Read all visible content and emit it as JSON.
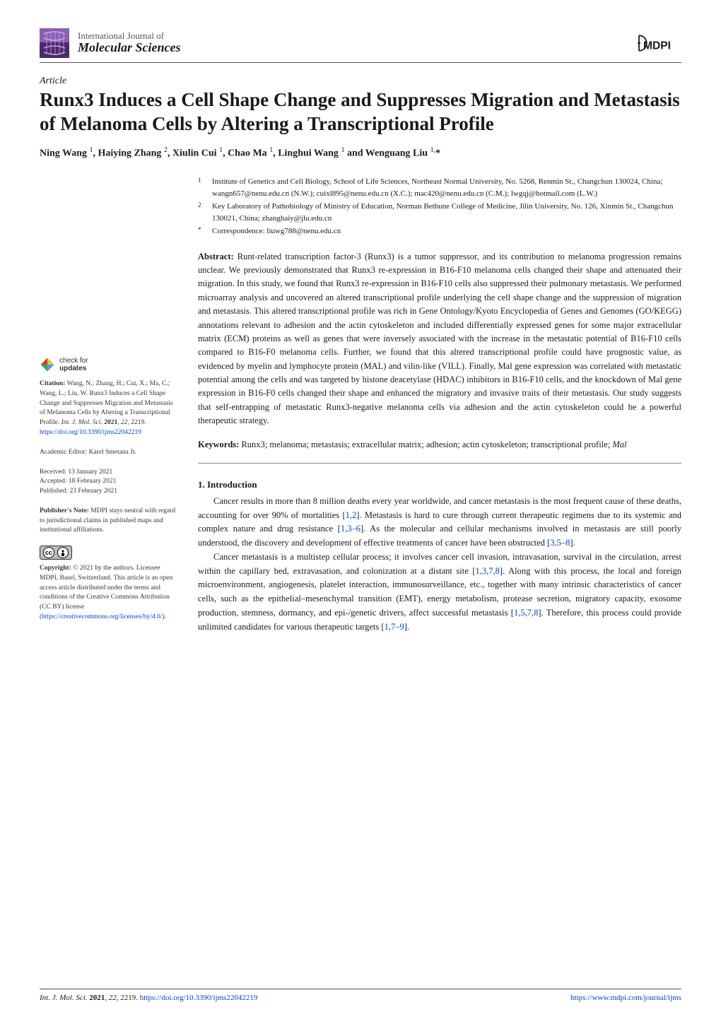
{
  "journal": {
    "line1": "International Journal of",
    "line2": "Molecular Sciences",
    "logo_colors": {
      "top": "#8a5fb0",
      "bottom": "#4a2a6a",
      "strand": "#c9a8e8"
    }
  },
  "publisher_logo_text": "MDPI",
  "article_type": "Article",
  "title": "Runx3 Induces a Cell Shape Change and Suppresses Migration and Metastasis of Melanoma Cells by Altering a Transcriptional Profile",
  "authors_html": "Ning Wang <sup>1</sup>, Haiying Zhang <sup>2</sup>, Xiulin Cui <sup>1</sup>, Chao Ma <sup>1</sup>, Linghui Wang <sup>1</sup> and Wenguang Liu <sup>1,</sup>*",
  "affiliations": [
    {
      "marker": "1",
      "text": "Institute of Genetics and Cell Biology, School of Life Sciences, Northeast Normal University, No. 5268, Renmin St., Changchun 130024, China; wangn657@nenu.edu.cn (N.W.); cuixl895@nenu.edu.cn (X.C.); mac420@nenu.edu.cn (C.M.); lwgqj@hotmail.com (L.W.)"
    },
    {
      "marker": "2",
      "text": "Key Laboratory of Pathobiology of Ministry of Education, Norman Bethune College of Medicine, Jilin University, No. 126, Xinmin St., Changchun 130021, China; zhanghaiy@jlu.edu.cn"
    },
    {
      "marker": "*",
      "text": "Correspondence: liuwg788@nenu.edu.cn"
    }
  ],
  "abstract": {
    "heading": "Abstract:",
    "text": "Runt-related transcription factor-3 (Runx3) is a tumor suppressor, and its contribution to melanoma progression remains unclear. We previously demonstrated that Runx3 re-expression in B16-F10 melanoma cells changed their shape and attenuated their migration. In this study, we found that Runx3 re-expression in B16-F10 cells also suppressed their pulmonary metastasis. We performed microarray analysis and uncovered an altered transcriptional profile underlying the cell shape change and the suppression of migration and metastasis. This altered transcriptional profile was rich in Gene Ontology/Kyoto Encyclopedia of Genes and Genomes (GO/KEGG) annotations relevant to adhesion and the actin cytoskeleton and included differentially expressed genes for some major extracellular matrix (ECM) proteins as well as genes that were inversely associated with the increase in the metastatic potential of B16-F10 cells compared to B16-F0 melanoma cells. Further, we found that this altered transcriptional profile could have prognostic value, as evidenced by myelin and lymphocyte protein (MAL) and vilin-like (VILL). Finally, Mal gene expression was correlated with metastatic potential among the cells and was targeted by histone deacetylase (HDAC) inhibitors in B16-F10 cells, and the knockdown of Mal gene expression in B16-F0 cells changed their shape and enhanced the migratory and invasive traits of their metastasis. Our study suggests that self-entrapping of metastatic Runx3-negative melanoma cells via adhesion and the actin cytoskeleton could be a powerful therapeutic strategy."
  },
  "keywords": {
    "heading": "Keywords:",
    "text": "Runx3; melanoma; metastasis; extracellular matrix; adhesion; actin cytoskeleton; transcriptional profile; Mal"
  },
  "sections": [
    {
      "heading": "1. Introduction",
      "paragraphs": [
        "Cancer results in more than 8 million deaths every year worldwide, and cancer metastasis is the most frequent cause of these deaths, accounting for over 90% of mortalities [1,2]. Metastasis is hard to cure through current therapeutic regimens due to its systemic and complex nature and drug resistance [1,3–6]. As the molecular and cellular mechanisms involved in metastasis are still poorly understood, the discovery and development of effective treatments of cancer have been obstructed [3,5–8].",
        "Cancer metastasis is a multistep cellular process; it involves cancer cell invasion, intravasation, survival in the circulation, arrest within the capillary bed, extravasation, and colonization at a distant site [1,3,7,8]. Along with this process, the local and foreign microenvironment, angiogenesis, platelet interaction, immunosurveillance, etc., together with many intrinsic characteristics of cancer cells, such as the epithelial–mesenchymal transition (EMT), energy metabolism, protease secretion, migratory capacity, exosome production, stemness, dormancy, and epi-/genetic drivers, affect successful metastasis [1,5,7,8]. Therefore, this process could provide unlimited candidates for various therapeutic targets [1,7–9]."
      ]
    }
  ],
  "sidebar": {
    "check_updates": {
      "line1": "check for",
      "line2": "updates"
    },
    "citation": {
      "label": "Citation:",
      "text": "Wang, N.; Zhang, H.; Cui, X.; Ma, C.; Wang, L.; Liu, W. Runx3 Induces a Cell Shape Change and Suppresses Migration and Metastasis of Melanoma Cells by Altering a Transcriptional Profile. Int. J. Mol. Sci. 2021, 22, 2219. https://doi.org/10.3390/ijms22042219"
    },
    "editor": {
      "label": "Academic Editor:",
      "value": "Karel Smetana Jr."
    },
    "dates": {
      "received_label": "Received:",
      "received": "13 January 2021",
      "accepted_label": "Accepted:",
      "accepted": "18 February 2021",
      "published_label": "Published:",
      "published": "23 February 2021"
    },
    "publishers_note": {
      "label": "Publisher's Note:",
      "text": "MDPI stays neutral with regard to jurisdictional claims in published maps and institutional affiliations."
    },
    "copyright": {
      "label": "Copyright:",
      "text": "© 2021 by the authors. Licensee MDPI, Basel, Switzerland. This article is an open access article distributed under the terms and conditions of the Creative Commons Attribution (CC BY) license (https://creativecommons.org/licenses/by/4.0/)."
    }
  },
  "footer": {
    "left": "Int. J. Mol. Sci. 2021, 22, 2219. https://doi.org/10.3390/ijms22042219",
    "right": "https://www.mdpi.com/journal/ijms"
  },
  "colors": {
    "text": "#1a1a1a",
    "rule": "#555555",
    "link": "#0046c8",
    "check_red": "#d9362f",
    "check_yellow": "#f5c23a",
    "check_green": "#3aa655",
    "check_cyan": "#3aa6d9"
  }
}
